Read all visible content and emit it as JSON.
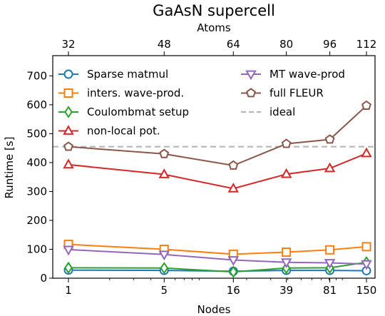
{
  "chart_data": {
    "type": "line",
    "title": "GaAsN supercell",
    "top_axis_label": "Atoms",
    "top_tick_labels": [
      "32",
      "48",
      "64",
      "80",
      "96",
      "112"
    ],
    "xlabel": "Nodes",
    "ylabel": "Runtime [s]",
    "x_scale": "log",
    "x": [
      1,
      5,
      16,
      39,
      81,
      150
    ],
    "x_tick_labels": [
      "1",
      "5",
      "16",
      "39",
      "81",
      "150"
    ],
    "ylim": [
      0,
      770
    ],
    "y_ticks": [
      0,
      100,
      200,
      300,
      400,
      500,
      600,
      700
    ],
    "grid": false,
    "legend_position": "upper",
    "series": [
      {
        "name": "Sparse matmul",
        "color": "#1f77b4",
        "marker": "circle",
        "values": [
          28,
          27,
          24,
          27,
          27,
          26
        ]
      },
      {
        "name": "inters. wave-prod.",
        "color": "#ff7f0e",
        "marker": "square",
        "values": [
          117,
          100,
          83,
          90,
          98,
          109
        ]
      },
      {
        "name": "Coulombmat setup",
        "color": "#2ca02c",
        "marker": "diamond",
        "values": [
          36,
          35,
          22,
          35,
          36,
          55
        ]
      },
      {
        "name": "non-local pot.",
        "color": "#d62728",
        "marker": "triangle-up",
        "values": [
          393,
          359,
          310,
          360,
          380,
          432
        ]
      },
      {
        "name": "MT wave-prod",
        "color": "#9467bd",
        "marker": "triangle-down",
        "values": [
          99,
          82,
          63,
          55,
          53,
          49
        ]
      },
      {
        "name": "full FLEUR",
        "color": "#8c564b",
        "marker": "pentagon",
        "values": [
          455,
          430,
          390,
          465,
          480,
          597
        ]
      }
    ],
    "reference_line": {
      "name": "ideal",
      "value": 455,
      "color": "#b3b3b3",
      "style": "dashed"
    }
  }
}
